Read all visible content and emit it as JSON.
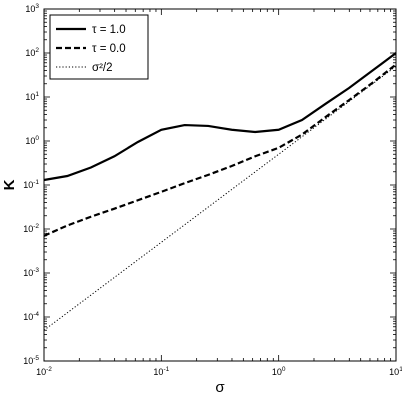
{
  "chart_data": {
    "type": "line",
    "title": "",
    "xlabel": "σ",
    "ylabel": "K",
    "xscale": "log",
    "yscale": "log",
    "xlim": [
      0.01,
      10
    ],
    "ylim": [
      1e-05,
      1000
    ],
    "grid": false,
    "legend_position": "top-left",
    "x_ticks": [
      {
        "base": "10",
        "exp": "-2",
        "value": 0.01
      },
      {
        "base": "10",
        "exp": "-1",
        "value": 0.1
      },
      {
        "base": "10",
        "exp": "0",
        "value": 1
      },
      {
        "base": "10",
        "exp": "1",
        "value": 10
      }
    ],
    "y_ticks": [
      {
        "base": "10",
        "exp": "-5",
        "value": 1e-05
      },
      {
        "base": "10",
        "exp": "-4",
        "value": 0.0001
      },
      {
        "base": "10",
        "exp": "-3",
        "value": 0.001
      },
      {
        "base": "10",
        "exp": "-2",
        "value": 0.01
      },
      {
        "base": "10",
        "exp": "-1",
        "value": 0.1
      },
      {
        "base": "10",
        "exp": "0",
        "value": 1
      },
      {
        "base": "10",
        "exp": "1",
        "value": 10
      },
      {
        "base": "10",
        "exp": "2",
        "value": 100
      },
      {
        "base": "10",
        "exp": "3",
        "value": 1000
      }
    ],
    "series": [
      {
        "name": "τ = 1.0",
        "style": "solid",
        "color": "#000000",
        "x": [
          0.01,
          0.0158,
          0.0251,
          0.0398,
          0.0631,
          0.1,
          0.158,
          0.251,
          0.398,
          0.631,
          1.0,
          1.58,
          2.51,
          3.98,
          6.31,
          10
        ],
        "y": [
          0.13,
          0.16,
          0.25,
          0.45,
          0.95,
          1.8,
          2.3,
          2.2,
          1.8,
          1.6,
          1.8,
          3.0,
          7.0,
          16,
          40,
          100
        ]
      },
      {
        "name": "τ = 0.0",
        "style": "dashed",
        "color": "#000000",
        "x": [
          0.01,
          0.0158,
          0.0251,
          0.0398,
          0.0631,
          0.1,
          0.158,
          0.251,
          0.398,
          0.631,
          1.0,
          1.58,
          2.51,
          3.98,
          6.31,
          10
        ],
        "y": [
          0.007,
          0.012,
          0.019,
          0.029,
          0.045,
          0.07,
          0.11,
          0.17,
          0.27,
          0.45,
          0.7,
          1.4,
          3.5,
          8.5,
          21,
          55
        ]
      },
      {
        "name": "σ²/2",
        "style": "dotted",
        "color": "#000000",
        "x": [
          0.01,
          10
        ],
        "y": [
          5e-05,
          50
        ]
      }
    ]
  }
}
